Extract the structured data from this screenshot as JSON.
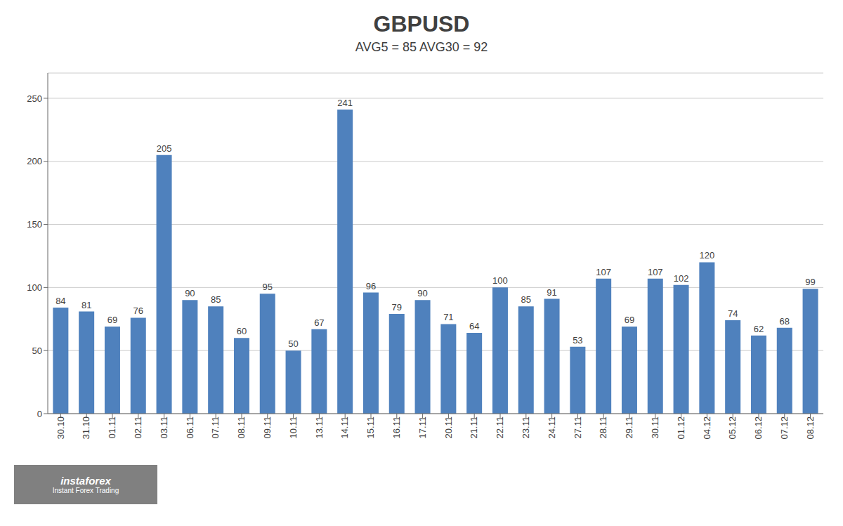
{
  "chart_data": {
    "type": "bar",
    "title": "GBPUSD",
    "subtitle": "AVG5 = 85 AVG30 = 92",
    "categories": [
      "30.10",
      "31.10",
      "01.11",
      "02.11",
      "03.11",
      "06.11",
      "07.11",
      "08.11",
      "09.11",
      "10.11",
      "13.11",
      "14.11",
      "15.11",
      "16.11",
      "17.11",
      "20.11",
      "21.11",
      "22.11",
      "23.11",
      "24.11",
      "27.11",
      "28.11",
      "29.11",
      "30.11",
      "01.12",
      "04.12",
      "05.12",
      "06.12",
      "07.12",
      "08.12"
    ],
    "values": [
      84,
      81,
      69,
      76,
      205,
      90,
      85,
      60,
      95,
      50,
      67,
      241,
      96,
      79,
      90,
      71,
      64,
      100,
      85,
      91,
      53,
      107,
      69,
      107,
      102,
      120,
      74,
      62,
      68,
      99
    ],
    "color": "#4f81bd",
    "ylim": [
      0,
      270
    ],
    "yticks": [
      0,
      50,
      100,
      150,
      200,
      250
    ],
    "grid": true,
    "data_labels": true,
    "annotations": [
      "instaforex",
      "Instant Forex Trading"
    ]
  }
}
